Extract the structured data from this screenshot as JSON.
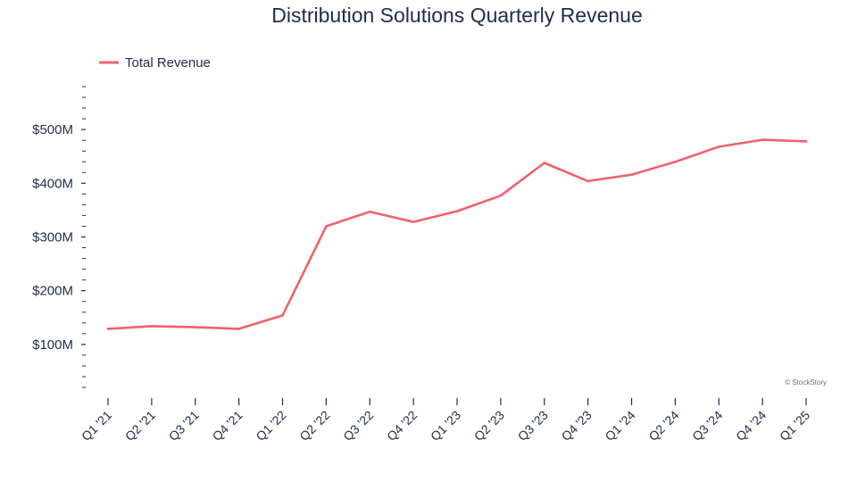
{
  "chart_data": {
    "type": "line",
    "title": "Distribution Solutions Quarterly Revenue",
    "categories": [
      "Q1 '21",
      "Q2 '21",
      "Q3 '21",
      "Q4 '21",
      "Q1 '22",
      "Q2 '22",
      "Q3 '22",
      "Q4 '22",
      "Q1 '23",
      "Q2 '23",
      "Q3 '23",
      "Q4 '23",
      "Q1 '24",
      "Q2 '24",
      "Q3 '24",
      "Q4 '24",
      "Q1 '25"
    ],
    "series": [
      {
        "name": "Total Revenue",
        "color": "#f0616d",
        "values": [
          129,
          134,
          132,
          129,
          154,
          320,
          347,
          328,
          348,
          377,
          438,
          404,
          416,
          440,
          468,
          481,
          478
        ]
      }
    ],
    "y_ticks": [
      {
        "value": 100,
        "label": "$100M"
      },
      {
        "value": 200,
        "label": "$200M"
      },
      {
        "value": 300,
        "label": "$300M"
      },
      {
        "value": 400,
        "label": "$400M"
      },
      {
        "value": 500,
        "label": "$500M"
      }
    ],
    "ylim": [
      20,
      580
    ],
    "y_minor_step": 20,
    "xlabel": "",
    "ylabel": "",
    "grid": false,
    "legend_position": "top-left",
    "credit": "© StockStory"
  }
}
